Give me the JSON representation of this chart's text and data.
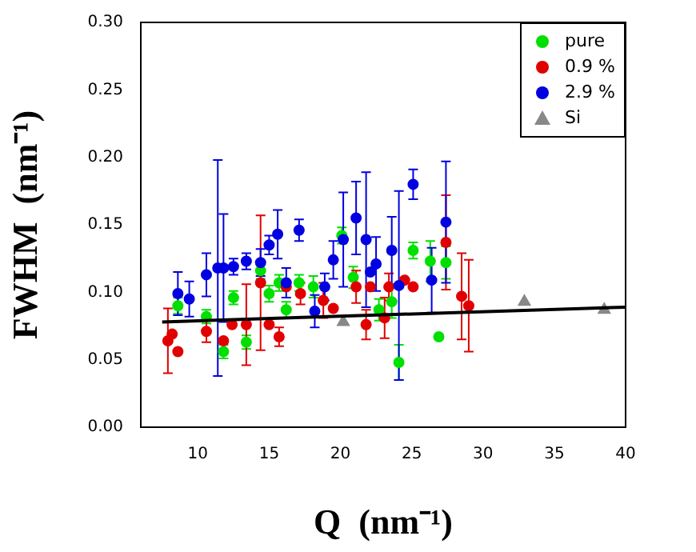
{
  "chart_data": {
    "type": "scatter",
    "xlabel": "Q  (nm⁻¹)",
    "ylabel": "FWHM  (nm⁻¹)",
    "xlim": [
      6,
      40
    ],
    "xticks": [
      10,
      15,
      20,
      25,
      30,
      35,
      40
    ],
    "ylim": [
      0,
      0.3
    ],
    "yticks": [
      {
        "value": 0,
        "label": "0.00"
      },
      {
        "value": 0.05,
        "label": "0.05"
      },
      {
        "value": 0.1,
        "label": "0.10"
      },
      {
        "value": 0.15,
        "label": "0.15"
      },
      {
        "value": 0.2,
        "label": "0.20"
      },
      {
        "value": 0.25,
        "label": "0.25"
      },
      {
        "value": 0.3,
        "label": "0.30"
      }
    ],
    "grid": false,
    "legend": "top right",
    "marker": "circle",
    "series": [
      {
        "name": "pure",
        "color": "#00e000",
        "x": [
          8.6,
          10.6,
          11.8,
          12.5,
          13.4,
          14.4,
          15.0,
          15.7,
          16.2,
          17.1,
          18.1,
          20.1,
          20.9,
          22.7,
          23.6,
          24.1,
          25.1,
          26.3,
          26.9,
          27.4
        ],
        "values": [
          0.09,
          0.082,
          0.056,
          0.096,
          0.063,
          0.116,
          0.099,
          0.107,
          0.087,
          0.107,
          0.104,
          0.142,
          0.111,
          0.087,
          0.093,
          0.048,
          0.131,
          0.123,
          0.067,
          0.122
        ],
        "errors": [
          0.006,
          0.005,
          0.005,
          0.005,
          0.005,
          0.006,
          0.006,
          0.006,
          0.006,
          0.006,
          0.008,
          0.006,
          0.008,
          0.008,
          0.012,
          0.013,
          0.006,
          0.015,
          null,
          0.012
        ]
      },
      {
        "name": "0.9 %",
        "color": "#e00000",
        "x": [
          7.9,
          8.2,
          8.6,
          10.6,
          11.8,
          12.4,
          13.4,
          14.4,
          15.0,
          15.7,
          16.2,
          17.2,
          18.8,
          19.5,
          21.1,
          21.8,
          22.1,
          23.1,
          23.4,
          24.5,
          25.1,
          27.4,
          28.5,
          29.0
        ],
        "values": [
          0.064,
          0.069,
          0.056,
          0.071,
          0.064,
          0.076,
          0.076,
          0.107,
          0.076,
          0.067,
          0.104,
          0.099,
          0.094,
          0.088,
          0.104,
          0.076,
          0.104,
          0.081,
          0.104,
          0.109,
          0.104,
          0.137,
          0.097,
          0.09
        ],
        "errors": [
          0.024,
          null,
          null,
          0.008,
          null,
          null,
          0.03,
          0.05,
          null,
          0.007,
          null,
          0.008,
          0.013,
          null,
          0.012,
          0.011,
          null,
          0.015,
          0.01,
          null,
          null,
          0.035,
          0.032,
          0.034
        ]
      },
      {
        "name": "2.9 %",
        "color": "#0000e0",
        "x": [
          8.6,
          9.4,
          10.6,
          11.4,
          11.8,
          12.5,
          13.4,
          14.4,
          15.0,
          15.6,
          16.2,
          17.1,
          18.2,
          18.9,
          19.5,
          20.2,
          21.1,
          21.8,
          22.1,
          22.5,
          23.6,
          24.1,
          25.1,
          26.4,
          27.4
        ],
        "values": [
          0.099,
          0.095,
          0.113,
          0.118,
          0.118,
          0.119,
          0.123,
          0.122,
          0.135,
          0.143,
          0.107,
          0.146,
          0.086,
          0.104,
          0.124,
          0.139,
          0.155,
          0.139,
          0.115,
          0.121,
          0.131,
          0.105,
          0.18,
          0.109,
          0.152
        ],
        "errors": [
          0.016,
          0.013,
          0.016,
          0.08,
          0.04,
          0.006,
          0.006,
          0.01,
          0.007,
          0.018,
          0.011,
          0.008,
          0.012,
          0.01,
          0.014,
          0.035,
          0.027,
          0.05,
          null,
          0.02,
          0.025,
          0.07,
          0.011,
          0.024,
          0.045
        ]
      },
      {
        "name": "Si",
        "color": "#888888",
        "marker": "triangle",
        "x": [
          20.2,
          32.9,
          38.5
        ],
        "values": [
          0.078,
          0.093,
          0.087
        ]
      },
      {
        "type": "line",
        "color": "#000000",
        "marker": "none",
        "x": [
          7.5,
          40
        ],
        "values": [
          0.078,
          0.089
        ]
      }
    ]
  }
}
